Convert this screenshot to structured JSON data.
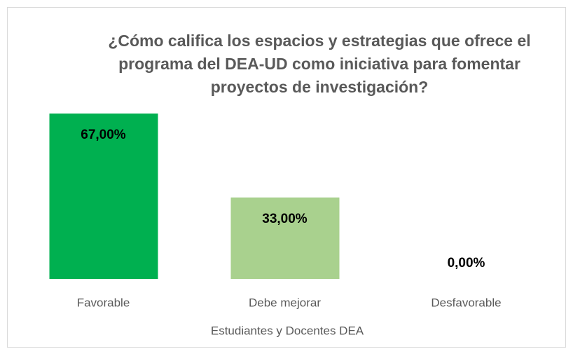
{
  "chart_data": {
    "type": "bar",
    "title": "¿Cómo califica los espacios y estrategias que ofrece el programa del DEA-UD como iniciativa para fomentar proyectos de investigación?",
    "x_label": "Estudiantes y Docentes  DEA",
    "categories": [
      "Favorable",
      "Debe mejorar",
      "Desfavorable"
    ],
    "values": [
      67,
      33,
      0
    ],
    "value_labels": [
      "67,00%",
      "33,00%",
      "0,00%"
    ],
    "colors": [
      "#00b050",
      "#a9d18e",
      "#a9d18e"
    ]
  }
}
